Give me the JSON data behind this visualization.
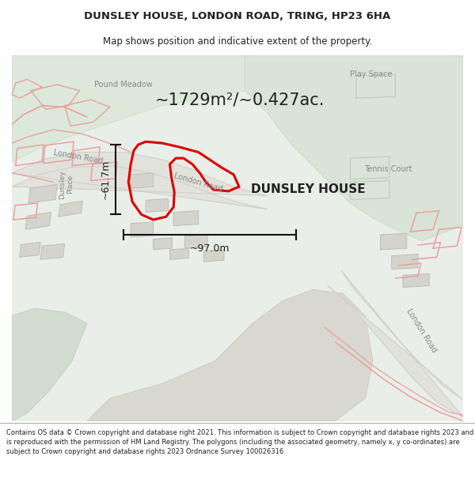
{
  "title_line1": "DUNSLEY HOUSE, LONDON ROAD, TRING, HP23 6HA",
  "title_line2": "Map shows position and indicative extent of the property.",
  "footer_text": "Contains OS data © Crown copyright and database right 2021. This information is subject to Crown copyright and database rights 2023 and is reproduced with the permission of HM Land Registry. The polygons (including the associated geometry, namely x, y co-ordinates) are subject to Crown copyright and database rights 2023 Ordnance Survey 100026316.",
  "area_text": "~1729m²/~0.427ac.",
  "label_text": "DUNSLEY HOUSE",
  "dim_h": "~61.7m",
  "dim_w": "~97.0m",
  "london_road_label1": "London Road",
  "london_road_label2": "London Road",
  "london_road_label3": "London Road",
  "pound_meadow_label": "Pound Meadow",
  "play_space_label": "Play Space",
  "tennis_court_label": "Tennis Court",
  "dunsley_place_label": "Dunsley\nPlace",
  "map_bg": "#eaeee8",
  "park_color": "#dae4d8",
  "road_color": "#e2e2dc",
  "road_edge": "#d0d0c8",
  "bldg_color": "#d4d4cc",
  "bldg_edge": "#bebeb6",
  "boundary_pink": "#e8a0a0",
  "highlight_red": "#dd0000",
  "white": "#ffffff",
  "text_dark": "#222222",
  "text_gray": "#888888",
  "title_fs": 9.5,
  "subtitle_fs": 8.5,
  "footer_fs": 6.0,
  "area_fs": 15,
  "label_fs": 11,
  "maptext_fs": 7.0,
  "dim_fs": 9
}
